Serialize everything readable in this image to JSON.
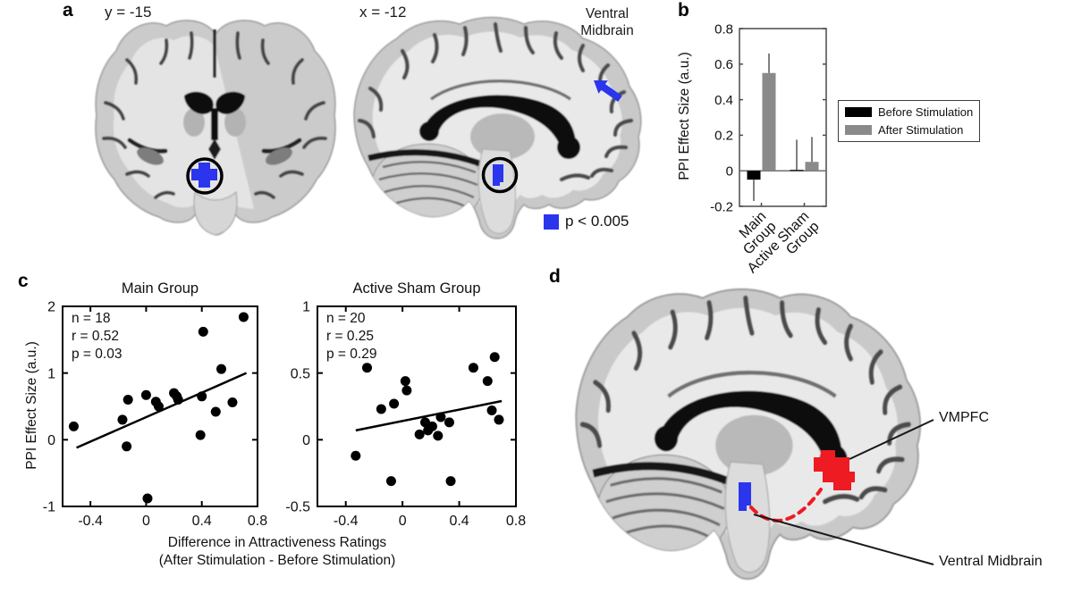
{
  "figure": {
    "background": "#ffffff"
  },
  "panels": {
    "a": {
      "letter": "a",
      "coronal_slice_label": "y = -15",
      "sagittal_slice_label": "x = -12",
      "region_label_line1": "Ventral",
      "region_label_line2": "Midbrain",
      "threshold_label": "p < 0.005",
      "cluster_color": "#2b35ee"
    },
    "b": {
      "letter": "b"
    },
    "c": {
      "letter": "c",
      "ylabel": "PPI Effect Size (a.u.)",
      "xlabel_line1": "Difference in Attractiveness Ratings",
      "xlabel_line2": "(After Stimulation - Before Stimulation)"
    },
    "d": {
      "letter": "d",
      "vmpfc_label": "VMPFC",
      "midbrain_label": "Ventral Midbrain",
      "vmpfc_color": "#ee1b22",
      "midbrain_color": "#2b35ee"
    }
  },
  "chart_data": [
    {
      "type": "bar",
      "ylabel": "PPI Effect Size (a.u.)",
      "ylim": [
        -0.2,
        0.8
      ],
      "yticks": [
        -0.2,
        0,
        0.2,
        0.4,
        0.6,
        0.8
      ],
      "categories": [
        [
          "Main",
          "Group"
        ],
        [
          "Active Sham",
          "Group"
        ]
      ],
      "series": [
        {
          "name": "Before Stimulation",
          "color": "#000000",
          "values": [
            -0.05,
            0.005
          ],
          "errors": [
            0.12,
            0.17
          ]
        },
        {
          "name": "After Stimulation",
          "color": "#8a8a8a",
          "values": [
            0.55,
            0.05
          ],
          "errors": [
            0.11,
            0.14
          ]
        }
      ],
      "legend_position": "right"
    },
    {
      "type": "scatter",
      "title": "Main Group",
      "annotation": [
        "n = 18",
        "r = 0.52",
        "p = 0.03"
      ],
      "xlim": [
        -0.6,
        0.8
      ],
      "ylim": [
        -1,
        2
      ],
      "xticks": [
        -0.4,
        0,
        0.4,
        0.8
      ],
      "yticks": [
        -1,
        0,
        1,
        2
      ],
      "points": [
        [
          -0.52,
          0.2
        ],
        [
          -0.17,
          0.3
        ],
        [
          -0.14,
          -0.1
        ],
        [
          -0.13,
          0.6
        ],
        [
          0,
          0.67
        ],
        [
          0.01,
          -0.88
        ],
        [
          0.07,
          0.57
        ],
        [
          0.09,
          0.5
        ],
        [
          0.2,
          0.7
        ],
        [
          0.22,
          0.65
        ],
        [
          0.23,
          0.6
        ],
        [
          0.39,
          0.07
        ],
        [
          0.4,
          0.65
        ],
        [
          0.41,
          1.62
        ],
        [
          0.5,
          0.42
        ],
        [
          0.54,
          1.06
        ],
        [
          0.62,
          0.56
        ],
        [
          0.7,
          1.84
        ]
      ],
      "fit_line": {
        "x1": -0.5,
        "y1": -0.12,
        "x2": 0.72,
        "y2": 1.0
      }
    },
    {
      "type": "scatter",
      "title": "Active Sham Group",
      "annotation": [
        "n = 20",
        "r = 0.25",
        "p = 0.29"
      ],
      "xlim": [
        -0.6,
        0.8
      ],
      "ylim": [
        -0.5,
        1
      ],
      "xticks": [
        -0.4,
        0,
        0.4,
        0.8
      ],
      "yticks": [
        -0.5,
        0,
        0.5,
        1
      ],
      "points": [
        [
          -0.33,
          -0.12
        ],
        [
          -0.25,
          0.54
        ],
        [
          -0.15,
          0.23
        ],
        [
          -0.08,
          -0.31
        ],
        [
          -0.06,
          0.27
        ],
        [
          0.02,
          0.44
        ],
        [
          0.03,
          0.37
        ],
        [
          0.12,
          0.04
        ],
        [
          0.16,
          0.13
        ],
        [
          0.18,
          0.07
        ],
        [
          0.21,
          0.1
        ],
        [
          0.25,
          0.03
        ],
        [
          0.27,
          0.17
        ],
        [
          0.33,
          0.13
        ],
        [
          0.34,
          -0.31
        ],
        [
          0.5,
          0.54
        ],
        [
          0.6,
          0.44
        ],
        [
          0.63,
          0.22
        ],
        [
          0.65,
          0.62
        ],
        [
          0.68,
          0.15
        ]
      ],
      "fit_line": {
        "x1": -0.33,
        "y1": 0.07,
        "x2": 0.7,
        "y2": 0.29
      }
    }
  ]
}
